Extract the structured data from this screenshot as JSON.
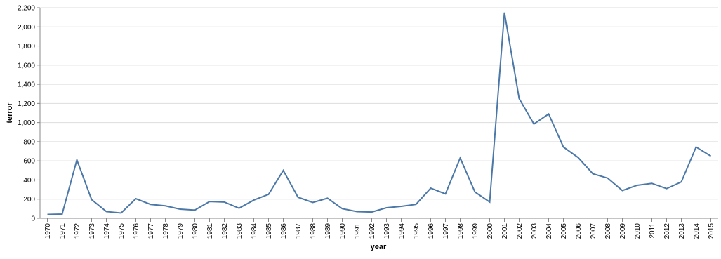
{
  "chart_data": {
    "type": "line",
    "x_label": "year",
    "y_label": "terror",
    "categories": [
      "1970",
      "1971",
      "1972",
      "1973",
      "1974",
      "1975",
      "1976",
      "1977",
      "1978",
      "1979",
      "1980",
      "1981",
      "1982",
      "1983",
      "1984",
      "1985",
      "1986",
      "1987",
      "1988",
      "1989",
      "1990",
      "1991",
      "1992",
      "1993",
      "1994",
      "1995",
      "1996",
      "1997",
      "1998",
      "1999",
      "2000",
      "2001",
      "2002",
      "2003",
      "2004",
      "2005",
      "2006",
      "2007",
      "2008",
      "2009",
      "2010",
      "2011",
      "2012",
      "2013",
      "2014",
      "2015"
    ],
    "values": [
      40,
      44,
      610,
      195,
      70,
      55,
      205,
      145,
      130,
      95,
      85,
      175,
      170,
      105,
      190,
      250,
      500,
      220,
      165,
      210,
      100,
      70,
      65,
      110,
      125,
      145,
      315,
      255,
      630,
      275,
      170,
      2150,
      1250,
      985,
      1090,
      745,
      635,
      465,
      420,
      290,
      345,
      365,
      310,
      380,
      745,
      650
    ],
    "color": "#4c78a8",
    "ylim": [
      0,
      2200
    ],
    "yticks": [
      0,
      200,
      400,
      600,
      800,
      {
        "value": 1000,
        "label": "1,000"
      },
      {
        "value": 1200,
        "label": "1,200"
      },
      {
        "value": 1400,
        "label": "1,400"
      },
      {
        "value": 1600,
        "label": "1,600"
      },
      {
        "value": 1800,
        "label": "1,800"
      },
      {
        "value": 2000,
        "label": "2,000"
      },
      {
        "value": 2200,
        "label": "2,200"
      }
    ],
    "grid": true
  }
}
